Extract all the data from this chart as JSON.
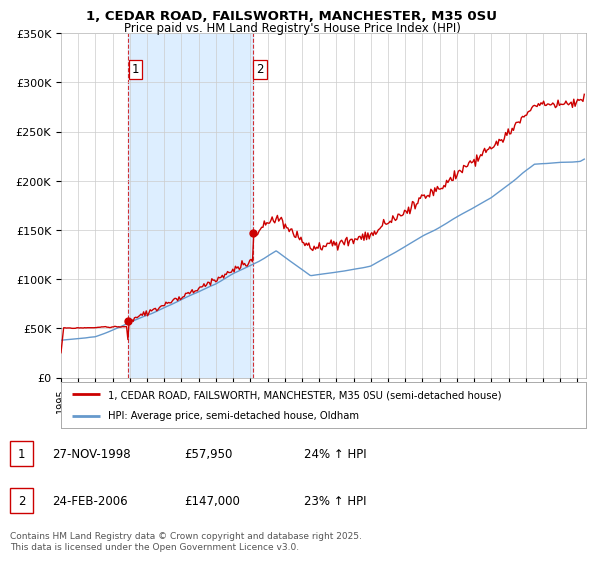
{
  "title": "1, CEDAR ROAD, FAILSWORTH, MANCHESTER, M35 0SU",
  "subtitle": "Price paid vs. HM Land Registry's House Price Index (HPI)",
  "ylabel_ticks": [
    "£0",
    "£50K",
    "£100K",
    "£150K",
    "£200K",
    "£250K",
    "£300K",
    "£350K"
  ],
  "ylim": [
    0,
    350000
  ],
  "xlim_start": 1995.0,
  "xlim_end": 2025.5,
  "purchase1_date": 1998.92,
  "purchase1_price": 57950,
  "purchase2_date": 2006.15,
  "purchase2_price": 147000,
  "red_color": "#cc0000",
  "blue_color": "#6699cc",
  "shade_color": "#ddeeff",
  "legend_label_red": "1, CEDAR ROAD, FAILSWORTH, MANCHESTER, M35 0SU (semi-detached house)",
  "legend_label_blue": "HPI: Average price, semi-detached house, Oldham",
  "table_row1": [
    "1",
    "27-NOV-1998",
    "£57,950",
    "24% ↑ HPI"
  ],
  "table_row2": [
    "2",
    "24-FEB-2006",
    "£147,000",
    "23% ↑ HPI"
  ],
  "footer": "Contains HM Land Registry data © Crown copyright and database right 2025.\nThis data is licensed under the Open Government Licence v3.0.",
  "background_color": "#ffffff",
  "grid_color": "#cccccc"
}
